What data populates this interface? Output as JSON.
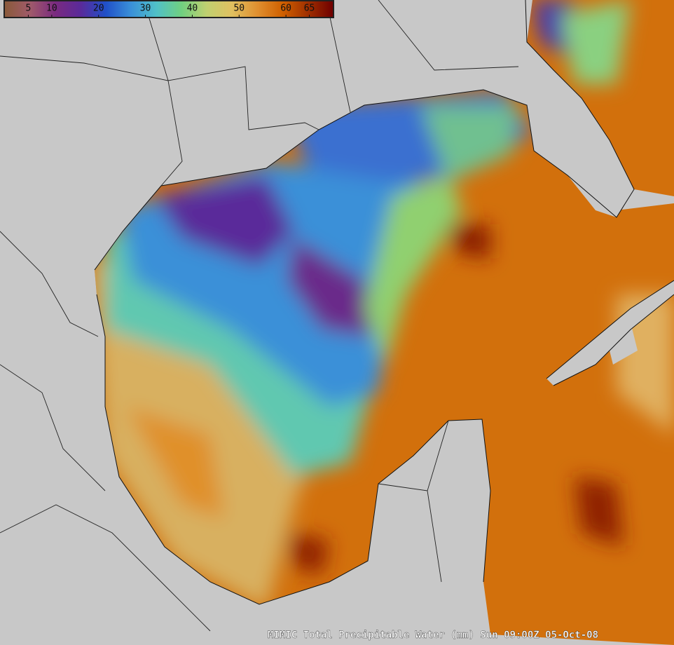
{
  "colorbar": {
    "range": [
      0,
      70
    ],
    "ticks": [
      5,
      10,
      20,
      30,
      40,
      50,
      60,
      65
    ],
    "colors": [
      "#8a5a3a",
      "#a05a6a",
      "#7a2a80",
      "#5a2a9a",
      "#2050c8",
      "#3a90d8",
      "#50c0c8",
      "#70d080",
      "#c0d070",
      "#e0c060",
      "#e09030",
      "#d06000",
      "#a03000",
      "#700000"
    ]
  },
  "caption": "MIMIC Total Precipitable Water (mm)  Sun 09:00Z 05-Oct-08"
}
